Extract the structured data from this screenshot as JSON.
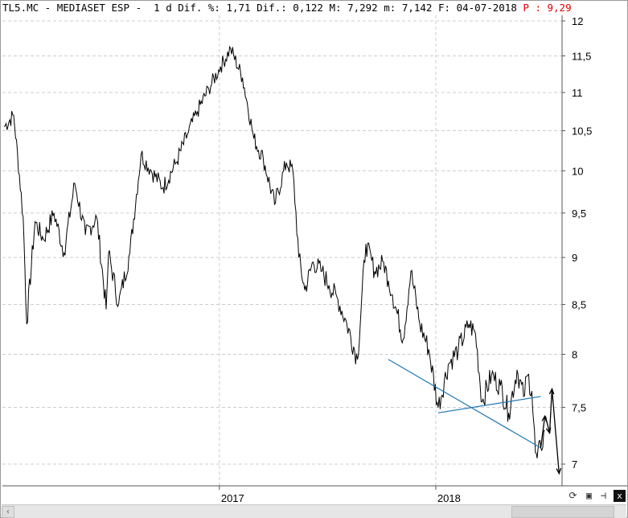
{
  "header": {
    "ticker": "TL5.MC - MEDIASET ESP -",
    "interval": "1 d",
    "dif_pct_label": "Dif. %:",
    "dif_pct": "1,71",
    "dif_label": "Dif.:",
    "dif": "0,122",
    "max_label": "M:",
    "max": "7,292",
    "min_label": "m:",
    "min": "7,142",
    "date_label": "F:",
    "date": "04-07-2018",
    "p_label": "P :",
    "p_value": "9,29"
  },
  "toolbar": {
    "refresh_icon": "refresh-icon",
    "save_icon": "save-icon",
    "pin_icon": "pin-icon",
    "close_label": "x"
  },
  "colors": {
    "price": "#000000",
    "trendline": "#1f77b4",
    "grid": "#cccccc"
  },
  "chart_data": {
    "type": "line",
    "title": "TL5.MC - MEDIASET ESP -",
    "xlabel": "",
    "ylabel": "",
    "x_tick_labels": [
      "2017",
      "2018"
    ],
    "y_tick_labels": [
      "12",
      "11,5",
      "11",
      "10,5",
      "10",
      "9,5",
      "9",
      "8,5",
      "8",
      "7,5",
      "7"
    ],
    "ylim": [
      6.9,
      12.05
    ],
    "grid": true,
    "series": [
      {
        "x": [
          "2016-01-04",
          "2016-01-20",
          "2016-02-05",
          "2016-02-11",
          "2016-02-25",
          "2016-03-10",
          "2016-03-28",
          "2016-04-14",
          "2016-05-02",
          "2016-05-20",
          "2016-06-08",
          "2016-06-24",
          "2016-06-28",
          "2016-07-15",
          "2016-08-03",
          "2016-08-22",
          "2016-09-08",
          "2016-09-28",
          "2016-10-20",
          "2016-11-08",
          "2016-11-25",
          "2016-12-14",
          "2017-01-03",
          "2017-01-20",
          "2017-02-09",
          "2017-02-28",
          "2017-03-16",
          "2017-04-04",
          "2017-04-24",
          "2017-05-05",
          "2017-05-15",
          "2017-05-25",
          "2017-06-08",
          "2017-06-23",
          "2017-07-05",
          "2017-07-20",
          "2017-08-04",
          "2017-08-22",
          "2017-09-05",
          "2017-09-20",
          "2017-10-05",
          "2017-10-13",
          "2017-10-20",
          "2017-11-07",
          "2017-11-20",
          "2017-12-05",
          "2017-12-20",
          "2018-01-05",
          "2018-01-22",
          "2018-02-08",
          "2018-02-26",
          "2018-03-09",
          "2018-03-20",
          "2018-04-05",
          "2018-04-20",
          "2018-05-04",
          "2018-05-18",
          "2018-05-29",
          "2018-06-05",
          "2018-06-12",
          "2018-06-18",
          "2018-06-21",
          "2018-06-27",
          "2018-07-04"
        ],
        "y": [
          10.55,
          10.7,
          9.45,
          8.3,
          9.4,
          9.2,
          9.5,
          9.05,
          9.85,
          9.25,
          9.45,
          8.45,
          9.05,
          8.5,
          9.05,
          10.2,
          10.0,
          9.8,
          10.1,
          10.45,
          10.75,
          11.05,
          11.35,
          11.6,
          11.2,
          10.4,
          10.15,
          9.6,
          10.1,
          10.0,
          9.0,
          8.65,
          8.95,
          8.85,
          8.7,
          8.55,
          8.3,
          7.95,
          9.15,
          8.85,
          8.95,
          8.75,
          8.6,
          8.15,
          8.85,
          8.3,
          8.05,
          7.5,
          7.9,
          8.05,
          8.3,
          8.2,
          7.55,
          7.8,
          7.7,
          7.45,
          7.85,
          7.6,
          7.8,
          7.65,
          7.1,
          7.05,
          7.14,
          7.29
        ]
      }
    ],
    "trendlines": [
      {
        "x": [
          "2017-10-13",
          "2018-06-27"
        ],
        "y": [
          7.95,
          7.14
        ]
      },
      {
        "x": [
          "2018-01-05",
          "2018-06-27"
        ],
        "y": [
          7.45,
          7.6
        ]
      }
    ],
    "projection_arrows": [
      {
        "x": [
          "2018-06-27",
          "2018-07-04"
        ],
        "y": [
          7.14,
          7.42
        ]
      },
      {
        "x": [
          "2018-07-05",
          "2018-07-12"
        ],
        "y": [
          7.42,
          7.27
        ]
      },
      {
        "x": [
          "2018-07-12",
          "2018-07-16"
        ],
        "y": [
          7.27,
          7.67
        ]
      },
      {
        "x": [
          "2018-07-16",
          "2018-07-28"
        ],
        "y": [
          7.67,
          6.92
        ]
      }
    ]
  }
}
